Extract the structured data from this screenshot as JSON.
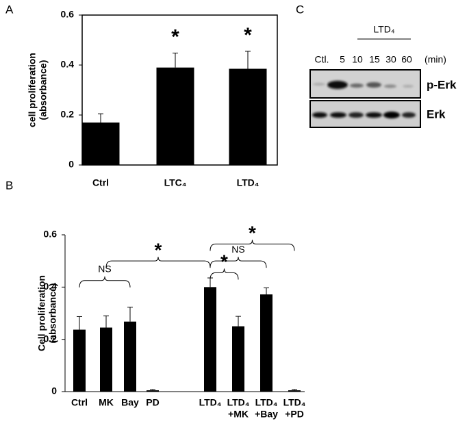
{
  "chart_data": [
    {
      "type": "bar",
      "panel_label": "A",
      "ylabel": [
        "cell proliferation",
        "(absorbance)"
      ],
      "categories": [
        [
          "Ctrl"
        ],
        [
          "LTC₄"
        ],
        [
          "LTD₄"
        ]
      ],
      "values": [
        0.17,
        0.39,
        0.385
      ],
      "errors": [
        0.035,
        0.058,
        0.07
      ],
      "significance": [
        null,
        "*",
        "*"
      ],
      "color": "#000000",
      "ylim": [
        0,
        0.6
      ],
      "yticks": [
        0,
        0.2,
        0.4,
        0.6
      ],
      "frame": true
    },
    {
      "type": "bar",
      "panel_label": "B",
      "ylabel": [
        "Cell proliferation",
        "(absorbance)"
      ],
      "categories": [
        [
          "Ctrl"
        ],
        [
          "MK"
        ],
        [
          "Bay"
        ],
        [
          "PD"
        ],
        [
          "LTD₄"
        ],
        [
          "LTD₄",
          "+MK"
        ],
        [
          "LTD₄",
          "+Bay"
        ],
        [
          "LTD₄",
          "+PD"
        ]
      ],
      "values": [
        0.237,
        0.245,
        0.268,
        0.005,
        0.4,
        0.25,
        0.372,
        0.005
      ],
      "errors": [
        0.05,
        0.045,
        0.055,
        0.003,
        0.035,
        0.038,
        0.025,
        0.003
      ],
      "color": "#000000",
      "ylim": [
        0,
        0.6
      ],
      "yticks": [
        0,
        0.2,
        0.4,
        0.6
      ],
      "frame": false,
      "comparisons": [
        {
          "label": "NS",
          "categories": [
            0,
            2
          ],
          "y": 0.425
        },
        {
          "label": "*",
          "categories": [
            1,
            4
          ],
          "y": 0.5
        },
        {
          "label": "*",
          "categories": [
            4,
            5
          ],
          "y": 0.455
        },
        {
          "label": "NS",
          "categories": [
            4,
            6
          ],
          "y": 0.5
        },
        {
          "label": "*",
          "categories": [
            4,
            7
          ],
          "y": 0.565
        }
      ]
    }
  ],
  "blot": {
    "panel_label": "C",
    "treatment": "LTD₄",
    "lanes": [
      "Ctl.",
      "5",
      "10",
      "15",
      "30",
      "60"
    ],
    "unit": "(min)",
    "rows": [
      "p-Erk",
      "Erk"
    ]
  }
}
